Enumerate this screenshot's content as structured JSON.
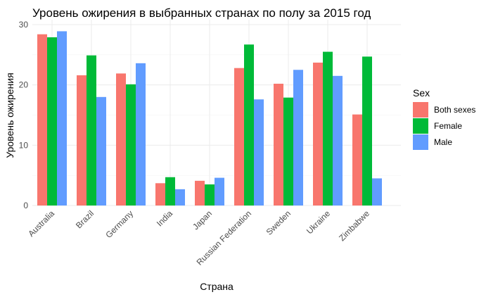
{
  "chart_data": {
    "type": "bar",
    "title": "Уровень ожирения в выбранных странах по полу за 2015 год",
    "xlabel": "Страна",
    "ylabel": "Уровень ожирения",
    "ylim": [
      0,
      30
    ],
    "yticks": [
      0,
      10,
      20,
      30
    ],
    "grid": true,
    "legend_title": "Sex",
    "legend_position": "right",
    "categories": [
      "Australia",
      "Brazil",
      "Germany",
      "India",
      "Japan",
      "Russian Federation",
      "Sweden",
      "Ukraine",
      "Zimbabwe"
    ],
    "series": [
      {
        "name": "Both sexes",
        "color": "#F8766D",
        "values": [
          28.4,
          21.6,
          21.9,
          3.7,
          4.1,
          22.8,
          20.2,
          23.7,
          15.1
        ]
      },
      {
        "name": "Female",
        "color": "#00BA38",
        "values": [
          27.9,
          24.9,
          20.1,
          4.7,
          3.5,
          26.7,
          17.9,
          25.5,
          24.7
        ]
      },
      {
        "name": "Male",
        "color": "#619CFF",
        "values": [
          28.9,
          18.0,
          23.6,
          2.7,
          4.6,
          17.6,
          22.5,
          21.5,
          4.5
        ]
      }
    ]
  }
}
